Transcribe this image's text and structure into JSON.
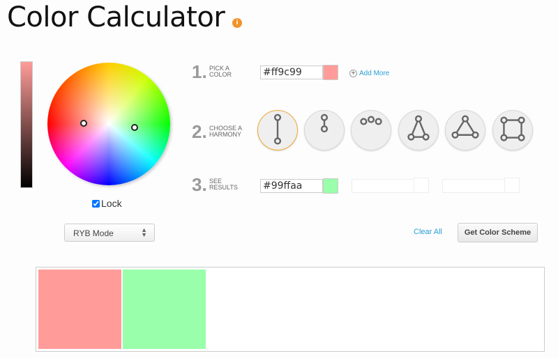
{
  "title": "Color Calculator",
  "info_icon": "info-icon",
  "wheel": {
    "lock_label": "Lock",
    "lock_checked": true,
    "mode": "RYB Mode"
  },
  "steps": [
    {
      "num": "1.",
      "label1": "PICK A",
      "label2": "COLOR",
      "value": "#ff9c99",
      "swatch": "#ff9c99"
    },
    {
      "num": "2.",
      "label1": "CHOOSE A",
      "label2": "HARMONY"
    },
    {
      "num": "3.",
      "label1": "SEE",
      "label2": "RESULTS",
      "value": "#99ffaa",
      "swatch": "#99ffaa"
    }
  ],
  "add_more": "Add More",
  "harmonies": [
    "complementary",
    "monochromatic",
    "analogous",
    "split-complementary",
    "triad",
    "square"
  ],
  "selected_harmony": "complementary",
  "clear_all": "Clear All",
  "get_scheme": "Get Color Scheme",
  "result_colors": [
    "#ff9c99",
    "#99ffaa"
  ],
  "accent": "#f0a830"
}
